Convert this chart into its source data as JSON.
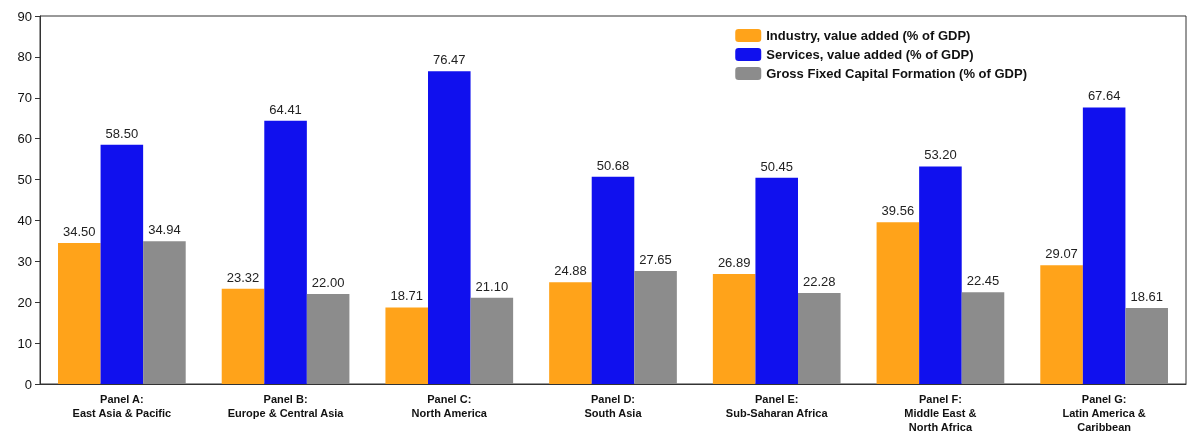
{
  "chart_data": {
    "type": "bar",
    "categories": [
      "Panel A:\nEast Asia & Pacific",
      "Panel B:\nEurope & Central Asia",
      "Panel C:\nNorth America",
      "Panel D:\nSouth Asia",
      "Panel E:\nSub-Saharan Africa",
      "Panel F:\nMiddle East &\nNorth Africa",
      "Panel G:\nLatin America &\nCaribbean"
    ],
    "series": [
      {
        "name": "Industry, value added (% of GDP)",
        "color": "#ffa31a",
        "values": [
          34.5,
          23.32,
          18.71,
          24.88,
          26.89,
          39.56,
          29.07
        ],
        "value_labels": [
          "34.50",
          "23.32",
          "18.71",
          "24.88",
          "26.89",
          "39.56",
          "29.07"
        ]
      },
      {
        "name": "Services, value added (% of GDP)",
        "color": "#1010ee",
        "values": [
          58.5,
          64.41,
          76.47,
          50.68,
          50.45,
          53.2,
          67.64
        ],
        "value_labels": [
          "58.50",
          "64.41",
          "76.47",
          "50.68",
          "50.45",
          "53.20",
          "67.64"
        ]
      },
      {
        "name": "Gross Fixed Capital Formation (% of GDP)",
        "color": "#8c8c8c",
        "values": [
          34.94,
          22.0,
          21.1,
          27.65,
          22.28,
          22.45,
          18.61
        ],
        "value_labels": [
          "34.94",
          "22.00",
          "21.10",
          "27.65",
          "22.28",
          "22.45",
          "18.61"
        ]
      }
    ],
    "ylim": [
      0,
      90
    ],
    "yticks": [
      0,
      10,
      20,
      30,
      40,
      50,
      60,
      70,
      80,
      90
    ],
    "grid": false,
    "legend": "top right"
  }
}
